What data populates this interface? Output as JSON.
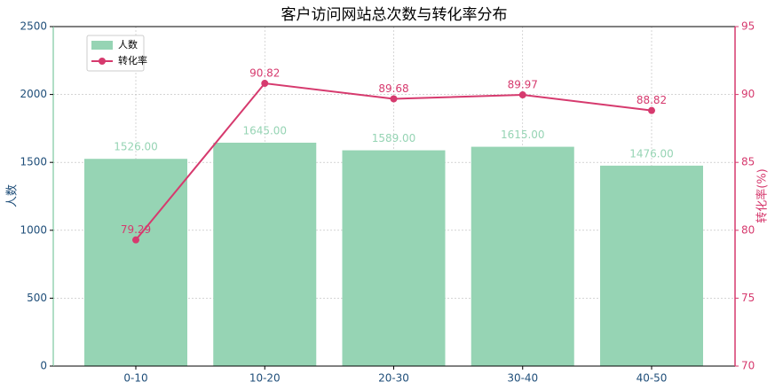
{
  "chart_data": {
    "type": "bar",
    "title": "客户访问网站总次数与转化率分布",
    "categories": [
      "0-10",
      "10-20",
      "20-30",
      "30-40",
      "40-50"
    ],
    "series": [
      {
        "name": "人数",
        "type": "bar",
        "color": "#96d4b4",
        "values": [
          1526,
          1645,
          1589,
          1615,
          1476
        ],
        "value_labels": [
          "1526.00",
          "1645.00",
          "1589.00",
          "1615.00",
          "1476.00"
        ]
      },
      {
        "name": "转化率",
        "type": "line",
        "axis": "y2",
        "color": "#d63a6e",
        "values": [
          79.29,
          90.82,
          89.68,
          89.97,
          88.82
        ]
      }
    ],
    "ylabel": "人数",
    "y2label": "转化率(%)",
    "ylim": [
      0,
      2500
    ],
    "yticks": [
      0,
      500,
      1000,
      1500,
      2000,
      2500
    ],
    "y2lim": [
      70,
      95
    ],
    "y2ticks": [
      70,
      75,
      80,
      85,
      90,
      95
    ],
    "grid": true,
    "legend": "upper left"
  }
}
